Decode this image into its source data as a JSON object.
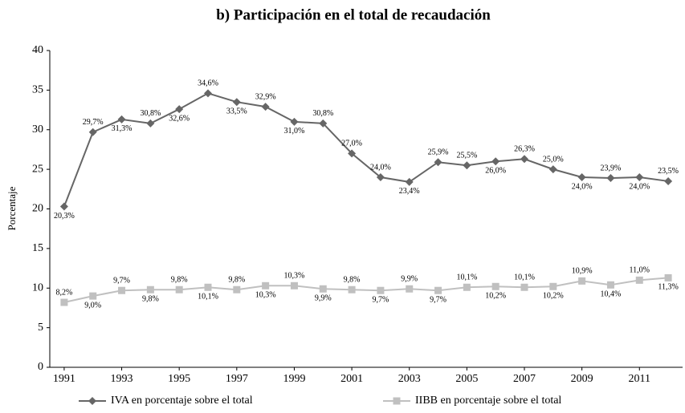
{
  "chart_data": {
    "type": "line",
    "title": "b) Participación en el total de recaudación",
    "y_label": "Porcentaje",
    "x": [
      1991,
      1992,
      1993,
      1994,
      1995,
      1996,
      1997,
      1998,
      1999,
      2000,
      2001,
      2002,
      2003,
      2004,
      2005,
      2006,
      2007,
      2008,
      2009,
      2010,
      2011,
      2012
    ],
    "xlim": [
      1990.5,
      2012.5
    ],
    "xticks": [
      1991,
      1993,
      1995,
      1997,
      1999,
      2001,
      2003,
      2005,
      2007,
      2009,
      2011
    ],
    "ylim": [
      0,
      40
    ],
    "yticks": [
      0,
      5,
      10,
      15,
      20,
      25,
      30,
      35,
      40
    ],
    "grid": false,
    "legend": "bottom",
    "series": [
      {
        "name": "IVA en porcentaje sobre el total",
        "color": "#666666",
        "marker": "diamond",
        "values": [
          20.3,
          29.7,
          31.3,
          30.8,
          32.6,
          34.6,
          33.5,
          32.9,
          31.0,
          30.8,
          27.0,
          24.0,
          23.4,
          25.9,
          25.5,
          26.0,
          26.3,
          25.0,
          24.0,
          23.9,
          24.0,
          23.5
        ],
        "value_labels": [
          "20,3%",
          "29,7%",
          "31,3%",
          "30,8%",
          "32,6%",
          "34,6%",
          "33,5%",
          "32,9%",
          "31,0%",
          "30,8%",
          "27,0%",
          "24,0%",
          "23,4%",
          "25,9%",
          "25,5%",
          "26,0%",
          "26,3%",
          "25,0%",
          "24,0%",
          "23,9%",
          "24,0%",
          "23,5%"
        ]
      },
      {
        "name": "IIBB en porcentaje sobre el total",
        "color": "#c0c0c0",
        "marker": "square",
        "values": [
          8.2,
          9.0,
          9.7,
          9.8,
          9.8,
          10.1,
          9.8,
          10.3,
          10.3,
          9.9,
          9.8,
          9.7,
          9.9,
          9.7,
          10.1,
          10.2,
          10.1,
          10.2,
          10.9,
          10.4,
          11.0,
          11.3
        ],
        "value_labels": [
          "8,2%",
          "9,0%",
          "9,7%",
          "9,8%",
          "9,8%",
          "10,1%",
          "9,8%",
          "10,3%",
          "10,3%",
          "9,9%",
          "9,8%",
          "9,7%",
          "9,9%",
          "9,7%",
          "10,1%",
          "10,2%",
          "10,1%",
          "10,2%",
          "10,9%",
          "10,4%",
          "11,0%",
          "11,3%"
        ]
      }
    ]
  }
}
